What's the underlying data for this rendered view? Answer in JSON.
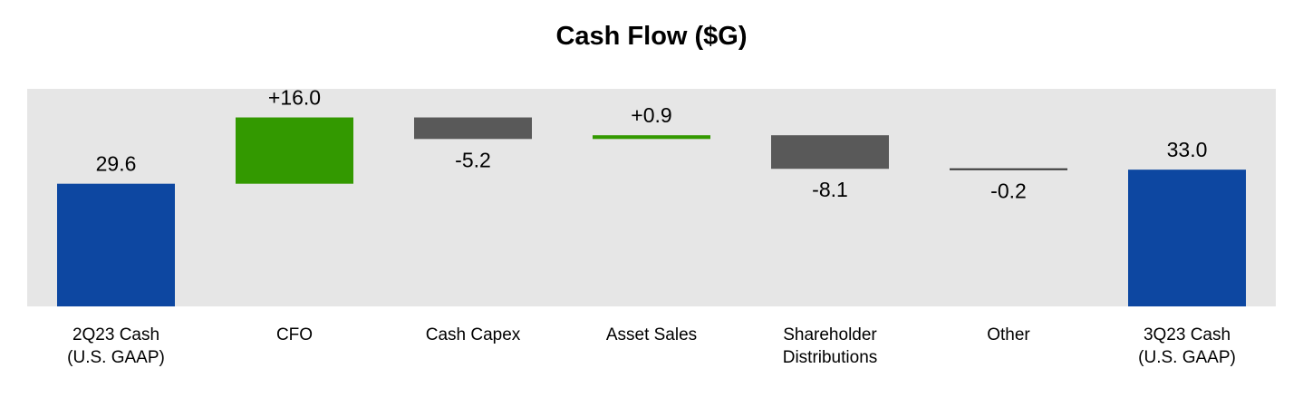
{
  "chart_data": {
    "type": "bar",
    "subtype": "waterfall",
    "title": "Cash Flow ($G)",
    "xlabel": "",
    "ylabel": "",
    "categories": [
      [
        "2Q23 Cash",
        "(U.S. GAAP)"
      ],
      [
        "CFO"
      ],
      [
        "Cash Capex"
      ],
      [
        "Asset Sales"
      ],
      [
        "Shareholder",
        "Distributions"
      ],
      [
        "Other"
      ],
      [
        "3Q23 Cash",
        "(U.S. GAAP)"
      ]
    ],
    "values": [
      29.6,
      16.0,
      -5.2,
      0.9,
      -8.1,
      -0.2,
      33.0
    ],
    "value_labels": [
      "29.6",
      "+16.0",
      "-5.2",
      "+0.9",
      "-8.1",
      "-0.2",
      "33.0"
    ],
    "kinds": [
      "total",
      "delta",
      "delta",
      "delta",
      "delta",
      "delta",
      "total"
    ],
    "ylim": [
      0,
      52.5
    ],
    "grid": false,
    "legend": "none",
    "colors": {
      "total": "#0d47a1",
      "increase": "#339900",
      "decrease": "#595959",
      "plot_background": "#e6e6e6",
      "other_line": "#333333"
    }
  }
}
